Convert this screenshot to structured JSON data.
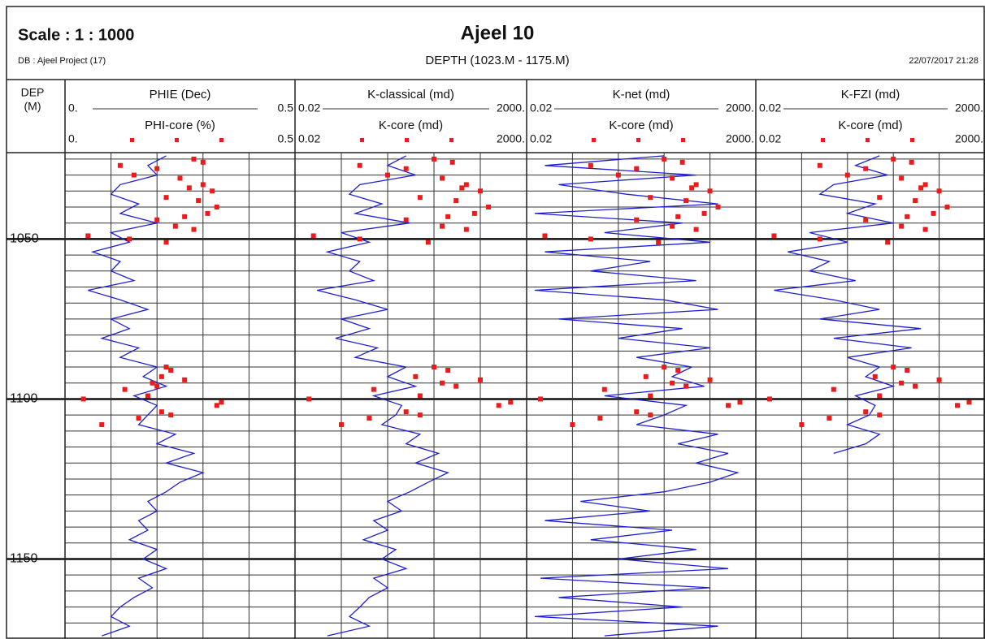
{
  "header": {
    "scale": "Scale : 1 : 1000",
    "title": "Ajeel 10",
    "database": "DB : Ajeel Project (17)",
    "depth_range": "DEPTH (1023.M - 1175.M)",
    "date": "22/07/2017 21:28"
  },
  "depth_axis": {
    "label": [
      "DEP",
      "(M)"
    ],
    "ylim": [
      1023,
      1175
    ],
    "yticks": [
      1050,
      1100,
      1150
    ],
    "minor_yticks": [
      1025,
      1030,
      1035,
      1040,
      1045,
      1055,
      1060,
      1065,
      1070,
      1075,
      1080,
      1085,
      1090,
      1095,
      1105,
      1110,
      1115,
      1120,
      1125,
      1130,
      1135,
      1140,
      1145,
      1155,
      1160,
      1165,
      1170
    ]
  },
  "chart_data": [
    {
      "type": "line",
      "log": false,
      "xticks": [
        0.1,
        0.2,
        0.3,
        0.4
      ],
      "series": [
        {
          "name": "PHIE (Dec)",
          "color": "#1f1fd0",
          "xlim": [
            {
              "value": 0,
              "label": "0."
            },
            0.5
          ],
          "depth": [
            1024,
            1027,
            1030,
            1033,
            1036,
            1039,
            1042,
            1045,
            1048,
            1051,
            1054,
            1057,
            1060,
            1063,
            1066,
            1069,
            1072,
            1075,
            1078,
            1081,
            1084,
            1087,
            1090,
            1093,
            1096,
            1099,
            1102,
            1105,
            1108,
            1111,
            1114,
            1117,
            1120,
            1123,
            1126,
            1129,
            1132,
            1135,
            1138,
            1141,
            1144,
            1147,
            1150,
            1153,
            1156,
            1159,
            1162,
            1165,
            1168,
            1171,
            1174
          ],
          "values": [
            0.22,
            0.18,
            0.2,
            0.12,
            0.1,
            0.16,
            0.12,
            0.2,
            0.1,
            0.14,
            0.06,
            0.12,
            0.1,
            0.15,
            0.05,
            0.12,
            0.18,
            0.1,
            0.14,
            0.08,
            0.16,
            0.12,
            0.2,
            0.17,
            0.22,
            0.15,
            0.2,
            0.18,
            0.16,
            0.24,
            0.2,
            0.28,
            0.22,
            0.3,
            0.25,
            0.22,
            0.18,
            0.2,
            0.16,
            0.18,
            0.14,
            0.2,
            0.17,
            0.22,
            0.16,
            0.19,
            0.15,
            0.12,
            0.1,
            0.14,
            0.08
          ]
        },
        {
          "name": "PHI-core (%)",
          "color": "#e81c1c",
          "xlim": [
            {
              "value": 0,
              "label": "0."
            },
            0.5
          ],
          "depth": [
            1025,
            1026,
            1027,
            1028,
            1030,
            1031,
            1033,
            1034,
            1035,
            1037,
            1038,
            1040,
            1042,
            1043,
            1044,
            1046,
            1047,
            1049,
            1050,
            1051,
            1090,
            1091,
            1093,
            1094,
            1095,
            1096,
            1097,
            1099,
            1100,
            1101,
            1102,
            1104,
            1105,
            1106,
            1108
          ],
          "values": [
            0.28,
            0.3,
            0.12,
            0.2,
            0.15,
            0.25,
            0.3,
            0.27,
            0.32,
            0.22,
            0.29,
            0.33,
            0.31,
            0.26,
            0.2,
            0.24,
            0.28,
            0.05,
            0.14,
            0.22,
            0.22,
            0.23,
            0.21,
            0.26,
            0.19,
            0.2,
            0.13,
            0.18,
            0.04,
            0.34,
            0.33,
            0.21,
            0.23,
            0.16,
            0.08
          ]
        }
      ]
    },
    {
      "type": "line",
      "log": true,
      "xticks": [
        0.2,
        2,
        20,
        200
      ],
      "series": [
        {
          "name": "K-classical (md)",
          "color": "#1f1fd0",
          "xlim": [
            0.02,
            {
              "value": 2000,
              "label": "2000."
            }
          ],
          "depth": [
            1024,
            1027,
            1030,
            1033,
            1036,
            1039,
            1042,
            1045,
            1048,
            1051,
            1054,
            1057,
            1060,
            1063,
            1066,
            1069,
            1072,
            1075,
            1078,
            1081,
            1084,
            1087,
            1090,
            1093,
            1096,
            1099,
            1102,
            1105,
            1108,
            1111,
            1114,
            1117,
            1120,
            1123,
            1126,
            1129,
            1132,
            1135,
            1138,
            1141,
            1144,
            1147,
            1150,
            1153,
            1156,
            1159,
            1162,
            1165,
            1168,
            1171,
            1174
          ],
          "values": [
            5,
            2,
            8,
            0.5,
            0.3,
            1.5,
            0.4,
            6,
            0.2,
            0.8,
            0.1,
            0.5,
            0.3,
            1,
            0.06,
            0.4,
            2,
            0.2,
            0.8,
            0.15,
            1.2,
            0.4,
            5,
            2,
            8,
            1,
            4,
            3,
            1.5,
            10,
            5,
            25,
            8,
            40,
            15,
            6,
            2,
            4,
            1,
            2,
            0.6,
            3,
            1.5,
            5,
            1,
            2,
            0.8,
            0.5,
            0.3,
            0.8,
            0.1
          ]
        },
        {
          "name": "K-core (md)",
          "color": "#e81c1c",
          "xlim": [
            0.02,
            {
              "value": 2000,
              "label": "2000."
            }
          ],
          "depth": [
            1025,
            1026,
            1027,
            1028,
            1030,
            1031,
            1033,
            1034,
            1035,
            1037,
            1038,
            1040,
            1042,
            1043,
            1044,
            1046,
            1047,
            1049,
            1050,
            1051,
            1090,
            1091,
            1093,
            1094,
            1095,
            1096,
            1097,
            1099,
            1100,
            1101,
            1102,
            1104,
            1105,
            1106,
            1108
          ],
          "values": [
            20,
            50,
            0.5,
            5,
            2,
            30,
            100,
            80,
            200,
            10,
            60,
            300,
            150,
            40,
            5,
            30,
            100,
            0.05,
            0.5,
            15,
            20,
            40,
            8,
            200,
            30,
            60,
            1,
            10,
            0.04,
            900,
            500,
            5,
            10,
            0.8,
            0.2
          ]
        }
      ]
    },
    {
      "type": "line",
      "log": true,
      "xticks": [
        0.2,
        2,
        20,
        200
      ],
      "series": [
        {
          "name": "K-net (md)",
          "color": "#1f1fd0",
          "xlim": [
            0.02,
            {
              "value": 2000,
              "label": "2000."
            }
          ],
          "depth": [
            1024,
            1027,
            1030,
            1033,
            1036,
            1039,
            1042,
            1045,
            1048,
            1051,
            1054,
            1057,
            1060,
            1063,
            1066,
            1069,
            1072,
            1075,
            1078,
            1081,
            1084,
            1087,
            1090,
            1093,
            1096,
            1099,
            1102,
            1105,
            1108,
            1111,
            1114,
            1117,
            1120,
            1123,
            1126,
            1129,
            1132,
            1135,
            1138,
            1141,
            1144,
            1147,
            1150,
            1153,
            1156,
            1159,
            1162,
            1165,
            1168,
            1171,
            1174
          ],
          "values": [
            20,
            0.05,
            100,
            0.1,
            3,
            300,
            0.03,
            50,
            1,
            200,
            0.05,
            10,
            0.5,
            100,
            0.03,
            20,
            300,
            0.1,
            50,
            2,
            200,
            5,
            80,
            30,
            150,
            1,
            60,
            20,
            5,
            300,
            40,
            500,
            100,
            800,
            200,
            20,
            0.3,
            10,
            0.05,
            30,
            0.5,
            100,
            2,
            500,
            0.04,
            200,
            0.1,
            50,
            0.03,
            300,
            1
          ]
        },
        {
          "name": "K-core (md)",
          "color": "#e81c1c",
          "xlim": [
            0.02,
            {
              "value": 2000,
              "label": "2000."
            }
          ],
          "depth": [
            1025,
            1026,
            1027,
            1028,
            1030,
            1031,
            1033,
            1034,
            1035,
            1037,
            1038,
            1040,
            1042,
            1043,
            1044,
            1046,
            1047,
            1049,
            1050,
            1051,
            1090,
            1091,
            1093,
            1094,
            1095,
            1096,
            1097,
            1099,
            1100,
            1101,
            1102,
            1104,
            1105,
            1106,
            1108
          ],
          "values": [
            20,
            50,
            0.5,
            5,
            2,
            30,
            100,
            80,
            200,
            10,
            60,
            300,
            150,
            40,
            5,
            30,
            100,
            0.05,
            0.5,
            15,
            20,
            40,
            8,
            200,
            30,
            60,
            1,
            10,
            0.04,
            900,
            500,
            5,
            10,
            0.8,
            0.2
          ]
        }
      ]
    },
    {
      "type": "line",
      "log": true,
      "xticks": [
        0.2,
        2,
        20,
        200
      ],
      "series": [
        {
          "name": "K-FZI (md)",
          "color": "#1f1fd0",
          "xlim": [
            0.02,
            {
              "value": 2000,
              "label": "2000."
            }
          ],
          "depth": [
            1024,
            1027,
            1030,
            1033,
            1036,
            1039,
            1042,
            1045,
            1048,
            1051,
            1054,
            1057,
            1060,
            1063,
            1066,
            1069,
            1072,
            1075,
            1078,
            1081,
            1084,
            1087,
            1090,
            1093,
            1096,
            1099,
            1102,
            1105,
            1108,
            1111,
            1114,
            1117
          ],
          "values": [
            10,
            3,
            15,
            1,
            0.5,
            8,
            2,
            20,
            0.3,
            2,
            0.1,
            0.8,
            0.3,
            3,
            0.05,
            1,
            10,
            0.5,
            80,
            1,
            50,
            2,
            10,
            5,
            20,
            3,
            8,
            6,
            2,
            10,
            5,
            1
          ]
        },
        {
          "name": "K-core (md)",
          "color": "#e81c1c",
          "xlim": [
            0.02,
            {
              "value": 2000,
              "label": "2000."
            }
          ],
          "depth": [
            1025,
            1026,
            1027,
            1028,
            1030,
            1031,
            1033,
            1034,
            1035,
            1037,
            1038,
            1040,
            1042,
            1043,
            1044,
            1046,
            1047,
            1049,
            1050,
            1051,
            1090,
            1091,
            1093,
            1094,
            1095,
            1096,
            1097,
            1099,
            1100,
            1101,
            1102,
            1104,
            1105,
            1106,
            1108
          ],
          "values": [
            20,
            50,
            0.5,
            5,
            2,
            30,
            100,
            80,
            200,
            10,
            60,
            300,
            150,
            40,
            5,
            30,
            100,
            0.05,
            0.5,
            15,
            20,
            40,
            8,
            200,
            30,
            60,
            1,
            10,
            0.04,
            900,
            500,
            5,
            10,
            0.8,
            0.2
          ]
        }
      ]
    }
  ]
}
